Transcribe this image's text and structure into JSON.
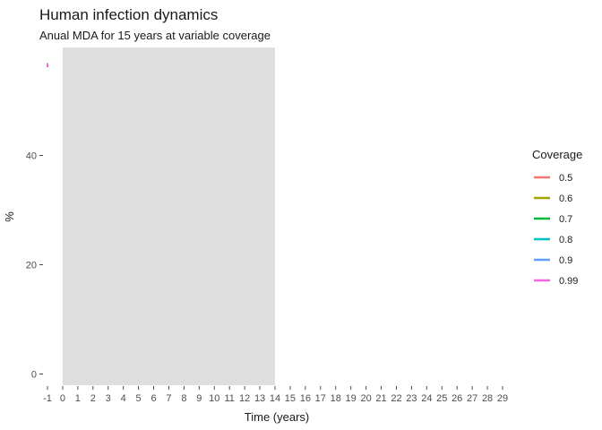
{
  "chart_data": {
    "type": "line",
    "title": "Human infection dynamics",
    "subtitle": "Anual MDA for 15 years at variable coverage",
    "xlabel": "Time (years)",
    "ylabel": "%",
    "xlim": [
      -1,
      29
    ],
    "ylim": [
      0,
      56
    ],
    "x_ticks": [
      "-1",
      "0",
      "1",
      "2",
      "3",
      "4",
      "5",
      "6",
      "7",
      "8",
      "9",
      "10",
      "11",
      "12",
      "13",
      "14",
      "15",
      "16",
      "17",
      "18",
      "19",
      "20",
      "21",
      "22",
      "23",
      "24",
      "25",
      "26",
      "27",
      "28",
      "29"
    ],
    "y_ticks": [
      0,
      20,
      40
    ],
    "shaded_region": {
      "x_start": 0,
      "x_end": 14,
      "color": "#dedede"
    },
    "grid": false,
    "legend": {
      "title": "Coverage",
      "position": "right"
    },
    "series": [
      {
        "name": "0.5",
        "color": "#F8766D",
        "x": [
          -1
        ],
        "y": [
          56.5
        ]
      },
      {
        "name": "0.6",
        "color": "#A3A500",
        "x": [
          -1
        ],
        "y": [
          56.5
        ]
      },
      {
        "name": "0.7",
        "color": "#00BA38",
        "x": [
          -1
        ],
        "y": [
          56.5
        ]
      },
      {
        "name": "0.8",
        "color": "#00BFC4",
        "x": [
          -1
        ],
        "y": [
          56.5
        ]
      },
      {
        "name": "0.9",
        "color": "#619CFF",
        "x": [
          -1
        ],
        "y": [
          56.5
        ]
      },
      {
        "name": "0.99",
        "color": "#F564E3",
        "x": [
          -1
        ],
        "y": [
          56.5
        ]
      }
    ]
  }
}
